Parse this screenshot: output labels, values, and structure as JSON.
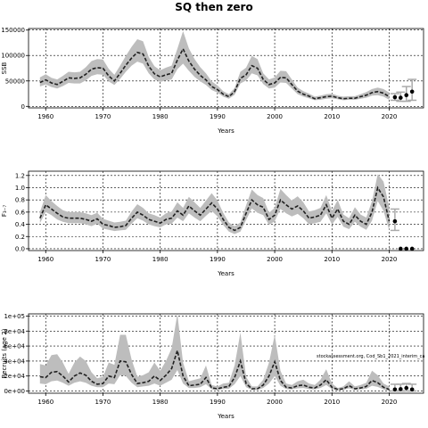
{
  "title": "SQ then zero",
  "watermark": "stockassessment.org, Cod_Sb1_2021_interim_ca",
  "colors": {
    "band": "#bdbdbd",
    "line": "#202020",
    "grid": "#000000",
    "proj_bar": "#a9a9a9"
  },
  "chart_data": [
    {
      "type": "line",
      "xlabel": "Years",
      "ylabel": "SSB",
      "xlim": [
        1957,
        2026
      ],
      "ylim": [
        -3000,
        153000
      ],
      "xticks": [
        "1960",
        "1970",
        "1980",
        "1990",
        "2000",
        "2010",
        "2020"
      ],
      "yticks": [
        "0",
        "50000",
        "100000",
        "150000"
      ],
      "grid": true,
      "x": [
        1959,
        1960,
        1961,
        1962,
        1963,
        1964,
        1965,
        1966,
        1967,
        1968,
        1969,
        1970,
        1971,
        1972,
        1973,
        1974,
        1975,
        1976,
        1977,
        1978,
        1979,
        1980,
        1981,
        1982,
        1983,
        1984,
        1985,
        1986,
        1987,
        1988,
        1989,
        1990,
        1991,
        1992,
        1993,
        1994,
        1995,
        1996,
        1997,
        1998,
        1999,
        2000,
        2001,
        2002,
        2003,
        2004,
        2005,
        2006,
        2007,
        2008,
        2009,
        2010,
        2011,
        2012,
        2013,
        2014,
        2015,
        2016,
        2017,
        2018,
        2019,
        2020
      ],
      "series": [
        {
          "role": "estimate",
          "values": [
            47000,
            52000,
            46000,
            43000,
            49000,
            56000,
            55000,
            56000,
            63000,
            73000,
            76000,
            75000,
            60000,
            50000,
            65000,
            81000,
            95000,
            106000,
            103000,
            79000,
            64000,
            58000,
            62000,
            65000,
            91000,
            113000,
            89000,
            73000,
            61000,
            52000,
            39000,
            33000,
            24000,
            19000,
            29000,
            55000,
            62000,
            80000,
            75000,
            53000,
            43000,
            46000,
            57000,
            56000,
            43000,
            30000,
            24000,
            20000,
            15000,
            17000,
            19000,
            20000,
            17000,
            15000,
            16000,
            16000,
            19000,
            22000,
            27000,
            29000,
            26000,
            19000
          ]
        },
        {
          "role": "lower",
          "values": [
            39000,
            43000,
            38000,
            35000,
            40000,
            46000,
            45000,
            45000,
            51000,
            60000,
            63000,
            62000,
            49000,
            42000,
            54000,
            68000,
            80000,
            88000,
            84000,
            65000,
            53000,
            48000,
            51000,
            53000,
            73000,
            84000,
            70000,
            58000,
            49000,
            42000,
            32000,
            27000,
            19000,
            15000,
            23000,
            45000,
            51000,
            65000,
            61000,
            44000,
            35000,
            37000,
            47000,
            46000,
            35000,
            24000,
            19000,
            16000,
            12000,
            13000,
            15000,
            16000,
            14000,
            12000,
            13000,
            13000,
            15000,
            17000,
            21000,
            22000,
            19000,
            13000
          ]
        },
        {
          "role": "upper",
          "values": [
            57000,
            63000,
            56000,
            53000,
            60000,
            68000,
            67000,
            68000,
            77000,
            89000,
            93000,
            92000,
            74000,
            62000,
            80000,
            99000,
            117000,
            132000,
            128000,
            97000,
            79000,
            71000,
            76000,
            80000,
            113000,
            148000,
            114000,
            93000,
            77000,
            65000,
            49000,
            41000,
            30000,
            24000,
            36000,
            68000,
            76000,
            99000,
            93000,
            65000,
            53000,
            57000,
            70000,
            69000,
            53000,
            37000,
            30000,
            25000,
            19000,
            21000,
            24000,
            25000,
            21000,
            19000,
            20000,
            20000,
            24000,
            28000,
            34000,
            37000,
            34000,
            27000
          ]
        }
      ],
      "projection": [
        {
          "x": 2021,
          "value": 18000,
          "low": 12000,
          "high": 25000
        },
        {
          "x": 2022,
          "value": 17000,
          "low": 10000,
          "high": 28000
        },
        {
          "x": 2023,
          "value": 22000,
          "low": 10000,
          "high": 39000
        },
        {
          "x": 2024,
          "value": 29000,
          "low": 12000,
          "high": 53000
        }
      ]
    },
    {
      "type": "line",
      "xlabel": "Years",
      "ylabel": "F₃₋₇",
      "xlim": [
        1957,
        2026
      ],
      "ylim": [
        -0.03,
        1.27
      ],
      "xticks": [
        "1960",
        "1970",
        "1980",
        "1990",
        "2000",
        "2010",
        "2020"
      ],
      "yticks": [
        "0.0",
        "0.2",
        "0.4",
        "0.6",
        "0.8",
        "1.0",
        "1.2"
      ],
      "grid": true,
      "x": [
        1959,
        1960,
        1961,
        1962,
        1963,
        1964,
        1965,
        1966,
        1967,
        1968,
        1969,
        1970,
        1971,
        1972,
        1973,
        1974,
        1975,
        1976,
        1977,
        1978,
        1979,
        1980,
        1981,
        1982,
        1983,
        1984,
        1985,
        1986,
        1987,
        1988,
        1989,
        1990,
        1991,
        1992,
        1993,
        1994,
        1995,
        1996,
        1997,
        1998,
        1999,
        2000,
        2001,
        2002,
        2003,
        2004,
        2005,
        2006,
        2007,
        2008,
        2009,
        2010,
        2011,
        2012,
        2013,
        2014,
        2015,
        2016,
        2017,
        2018,
        2019,
        2020
      ],
      "series": [
        {
          "role": "estimate",
          "values": [
            0.5,
            0.72,
            0.65,
            0.58,
            0.52,
            0.5,
            0.5,
            0.5,
            0.48,
            0.45,
            0.49,
            0.4,
            0.38,
            0.35,
            0.36,
            0.38,
            0.5,
            0.6,
            0.55,
            0.48,
            0.45,
            0.42,
            0.48,
            0.5,
            0.62,
            0.55,
            0.7,
            0.62,
            0.55,
            0.65,
            0.75,
            0.65,
            0.48,
            0.35,
            0.3,
            0.35,
            0.58,
            0.8,
            0.72,
            0.68,
            0.48,
            0.55,
            0.8,
            0.72,
            0.65,
            0.7,
            0.62,
            0.5,
            0.52,
            0.55,
            0.72,
            0.5,
            0.65,
            0.45,
            0.4,
            0.55,
            0.45,
            0.4,
            0.6,
            1.0,
            0.85,
            0.45
          ]
        },
        {
          "role": "lower",
          "values": [
            0.42,
            0.6,
            0.55,
            0.48,
            0.44,
            0.42,
            0.42,
            0.42,
            0.4,
            0.37,
            0.41,
            0.33,
            0.31,
            0.29,
            0.3,
            0.31,
            0.41,
            0.5,
            0.46,
            0.4,
            0.37,
            0.35,
            0.4,
            0.41,
            0.51,
            0.45,
            0.58,
            0.51,
            0.45,
            0.54,
            0.62,
            0.53,
            0.39,
            0.28,
            0.24,
            0.28,
            0.47,
            0.66,
            0.59,
            0.55,
            0.39,
            0.45,
            0.65,
            0.58,
            0.53,
            0.57,
            0.5,
            0.4,
            0.42,
            0.44,
            0.58,
            0.4,
            0.52,
            0.36,
            0.32,
            0.44,
            0.36,
            0.31,
            0.46,
            0.78,
            0.62,
            0.3
          ]
        },
        {
          "role": "upper",
          "values": [
            0.6,
            0.88,
            0.78,
            0.7,
            0.63,
            0.6,
            0.6,
            0.6,
            0.58,
            0.55,
            0.59,
            0.49,
            0.46,
            0.43,
            0.44,
            0.46,
            0.61,
            0.73,
            0.67,
            0.58,
            0.55,
            0.51,
            0.58,
            0.61,
            0.76,
            0.67,
            0.85,
            0.76,
            0.67,
            0.79,
            0.91,
            0.79,
            0.59,
            0.43,
            0.37,
            0.43,
            0.71,
            0.97,
            0.88,
            0.83,
            0.59,
            0.67,
            0.98,
            0.88,
            0.79,
            0.86,
            0.76,
            0.61,
            0.63,
            0.67,
            0.88,
            0.62,
            0.8,
            0.56,
            0.5,
            0.68,
            0.56,
            0.51,
            0.78,
            1.22,
            1.1,
            0.68
          ]
        }
      ],
      "projection": [
        {
          "x": 2021,
          "value": 0.45,
          "low": 0.3,
          "high": 0.65
        },
        {
          "x": 2022,
          "value": 0.0,
          "low": 0.0,
          "high": 0.0
        },
        {
          "x": 2023,
          "value": 0.0,
          "low": 0.0,
          "high": 0.0
        },
        {
          "x": 2024,
          "value": 0.0,
          "low": 0.0,
          "high": 0.0
        }
      ]
    },
    {
      "type": "line",
      "xlabel": "Years",
      "ylabel": "Recruits (age 2)",
      "xlim": [
        1957,
        2026
      ],
      "ylim": [
        -3000,
        103000
      ],
      "xticks": [
        "1960",
        "1970",
        "1980",
        "1990",
        "2000",
        "2010",
        "2020"
      ],
      "yticks": [
        "0e+00",
        "2e+04",
        "4e+04",
        "6e+04",
        "8e+04",
        "1e+05"
      ],
      "grid": true,
      "x": [
        1959,
        1960,
        1961,
        1962,
        1963,
        1964,
        1965,
        1966,
        1967,
        1968,
        1969,
        1970,
        1971,
        1972,
        1973,
        1974,
        1975,
        1976,
        1977,
        1978,
        1979,
        1980,
        1981,
        1982,
        1983,
        1984,
        1985,
        1986,
        1987,
        1988,
        1989,
        1990,
        1991,
        1992,
        1993,
        1994,
        1995,
        1996,
        1997,
        1998,
        1999,
        2000,
        2001,
        2002,
        2003,
        2004,
        2005,
        2006,
        2007,
        2008,
        2009,
        2010,
        2011,
        2012,
        2013,
        2014,
        2015,
        2016,
        2017,
        2018,
        2019,
        2020
      ],
      "series": [
        {
          "role": "estimate",
          "values": [
            19000,
            18000,
            25000,
            26000,
            20000,
            12000,
            20000,
            24000,
            21000,
            13000,
            9000,
            10000,
            20000,
            18000,
            40000,
            39000,
            22000,
            10000,
            11000,
            13000,
            20000,
            14000,
            21000,
            30000,
            54000,
            20000,
            7000,
            8000,
            9000,
            18000,
            4000,
            3000,
            5000,
            6000,
            18000,
            40000,
            10000,
            3000,
            3000,
            8000,
            20000,
            39000,
            14000,
            5000,
            4000,
            7000,
            8000,
            5000,
            4000,
            8000,
            15000,
            5000,
            2000,
            3000,
            7000,
            3000,
            4000,
            6000,
            14000,
            11000,
            5000,
            2000
          ]
        },
        {
          "role": "lower",
          "values": [
            10000,
            9000,
            13000,
            14000,
            11000,
            7000,
            11000,
            13000,
            11000,
            7000,
            5000,
            5000,
            10000,
            9000,
            21000,
            20000,
            11000,
            5000,
            6000,
            7000,
            10000,
            7000,
            11000,
            15000,
            28000,
            10000,
            4000,
            4000,
            5000,
            9000,
            2000,
            1500,
            2500,
            3000,
            9000,
            20000,
            5000,
            1500,
            1500,
            4000,
            10000,
            20000,
            7000,
            2500,
            2000,
            3500,
            4000,
            2500,
            2000,
            4000,
            8000,
            2500,
            1000,
            1500,
            3500,
            1500,
            2000,
            3000,
            7000,
            5500,
            2000,
            500
          ]
        },
        {
          "role": "upper",
          "values": [
            36000,
            34000,
            48000,
            49000,
            38000,
            23000,
            38000,
            46000,
            40000,
            25000,
            17000,
            19000,
            38000,
            35000,
            75000,
            75000,
            42000,
            19000,
            21000,
            25000,
            38000,
            27000,
            40000,
            57000,
            103000,
            38000,
            13000,
            15000,
            17000,
            34000,
            8000,
            6000,
            10000,
            11000,
            34000,
            78000,
            19000,
            6000,
            6000,
            15000,
            38000,
            75000,
            27000,
            10000,
            8000,
            13000,
            15000,
            10000,
            8000,
            15000,
            29000,
            10000,
            4000,
            6000,
            13000,
            6000,
            8000,
            11000,
            27000,
            21000,
            10000,
            6000
          ]
        }
      ],
      "projection": [
        {
          "x": 2021,
          "value": 2000,
          "low": 0,
          "high": 9000
        },
        {
          "x": 2022,
          "value": 2500,
          "low": 0,
          "high": 9000
        },
        {
          "x": 2023,
          "value": 4000,
          "low": 0,
          "high": 10000
        },
        {
          "x": 2024,
          "value": 2000,
          "low": 0,
          "high": 9000
        }
      ]
    }
  ]
}
